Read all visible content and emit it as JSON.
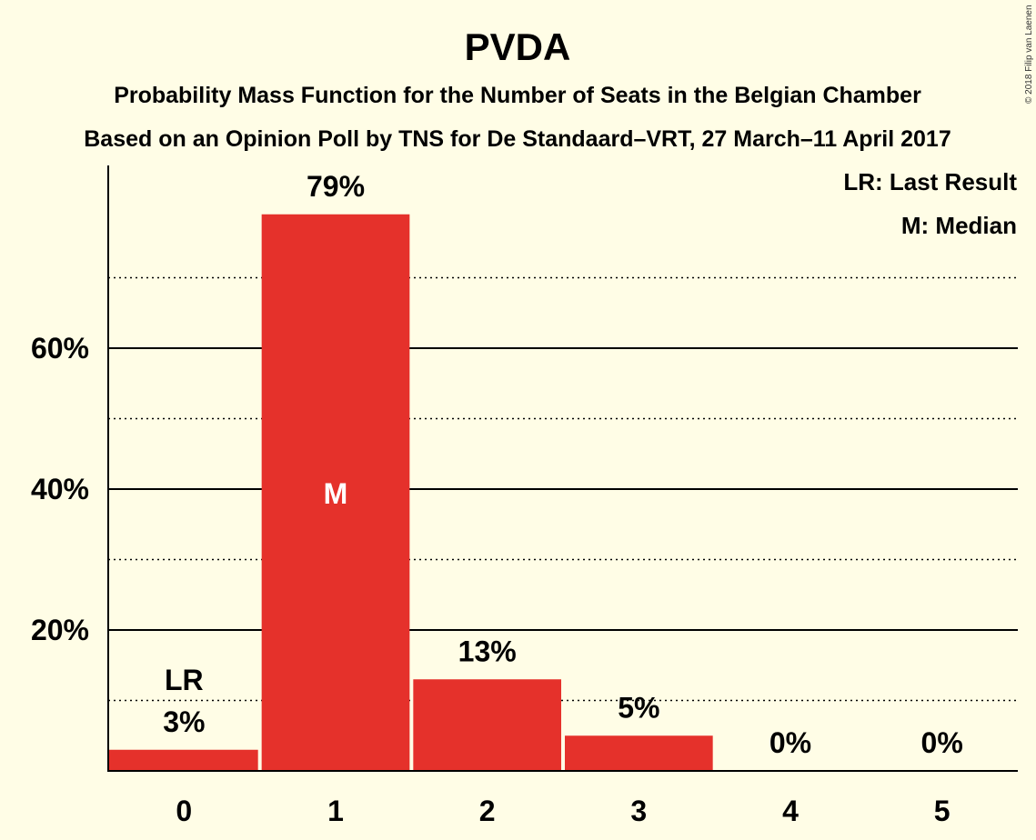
{
  "chart_data": {
    "type": "bar",
    "title": "PVDA",
    "subtitle_1": "Probability Mass Function for the Number of Seats in the Belgian Chamber",
    "subtitle_2": "Based on an Opinion Poll by TNS for De Standaard–VRT, 27 March–11 April 2017",
    "categories": [
      "0",
      "1",
      "2",
      "3",
      "4",
      "5"
    ],
    "values": [
      3,
      79,
      13,
      5,
      0,
      0
    ],
    "value_labels": [
      "3%",
      "79%",
      "13%",
      "5%",
      "0%",
      "0%"
    ],
    "y_ticks": [
      {
        "value": 20,
        "label": "20%"
      },
      {
        "value": 40,
        "label": "40%"
      },
      {
        "value": 60,
        "label": "60%"
      }
    ],
    "minor_gridlines": [
      10,
      30,
      50,
      70
    ],
    "ylim": [
      0,
      86
    ],
    "last_result_index": 0,
    "last_result_label": "LR",
    "median_index": 1,
    "median_label": "M",
    "legend": [
      "LR: Last Result",
      "M: Median"
    ],
    "legend_position": "top-right",
    "bar_color": "#e5312b",
    "background_color": "#fffde6",
    "copyright": "© 2018 Filip van Laenen"
  }
}
